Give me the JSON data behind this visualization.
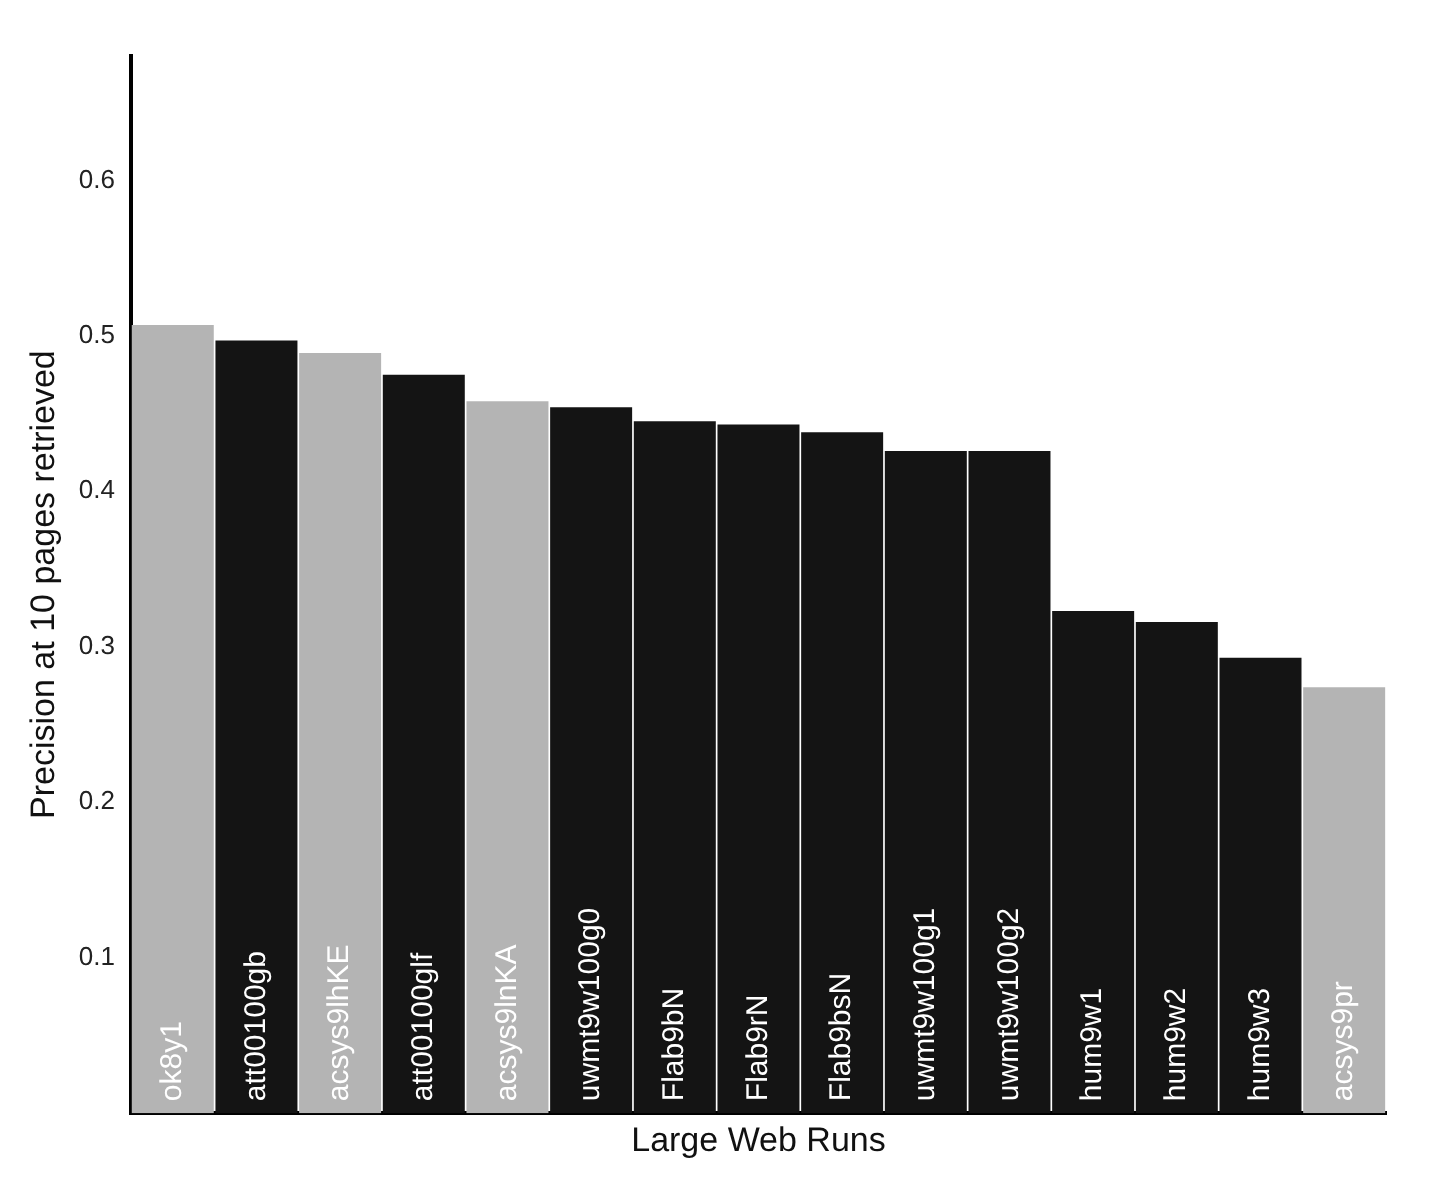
{
  "chart_data": {
    "type": "bar",
    "xlabel": "Large Web Runs",
    "ylabel": "Precision at 10 pages retrieved",
    "categories": [
      "ok8y1",
      "att00100gb",
      "acsys9lhKE",
      "att00100glf",
      "acsys9lnKA",
      "uwmt9w100g0",
      "Flab9bN",
      "Flab9rN",
      "Flab9bsN",
      "uwmt9w100g1",
      "uwmt9w100g2",
      "hum9w1",
      "hum9w2",
      "hum9w3",
      "acsys9pr"
    ],
    "values": [
      0.507,
      0.497,
      0.489,
      0.475,
      0.458,
      0.454,
      0.445,
      0.443,
      0.438,
      0.426,
      0.426,
      0.323,
      0.316,
      0.293,
      0.274
    ],
    "colors": [
      "#b4b4b4",
      "#141414",
      "#b4b4b4",
      "#141414",
      "#b4b4b4",
      "#141414",
      "#141414",
      "#141414",
      "#141414",
      "#141414",
      "#141414",
      "#141414",
      "#141414",
      "#141414",
      "#b4b4b4"
    ],
    "ylim": [
      0,
      0.68
    ],
    "yticks": [
      0.1,
      0.2,
      0.3,
      0.4,
      0.5,
      0.6
    ],
    "grid": false,
    "legend": false
  }
}
